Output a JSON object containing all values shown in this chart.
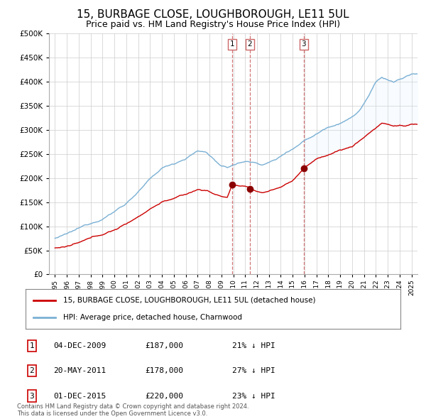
{
  "title": "15, BURBAGE CLOSE, LOUGHBOROUGH, LE11 5UL",
  "subtitle": "Price paid vs. HM Land Registry's House Price Index (HPI)",
  "title_fontsize": 11,
  "subtitle_fontsize": 9,
  "ytick_values": [
    0,
    50000,
    100000,
    150000,
    200000,
    250000,
    300000,
    350000,
    400000,
    450000,
    500000
  ],
  "ylim": [
    0,
    500000
  ],
  "xlim_start": 1994.5,
  "xlim_end": 2025.5,
  "legend_entries": [
    "15, BURBAGE CLOSE, LOUGHBOROUGH, LE11 5UL (detached house)",
    "HPI: Average price, detached house, Charnwood"
  ],
  "legend_colors": [
    "#cc0000",
    "#7ab0d4"
  ],
  "sale_events": [
    {
      "label": "1",
      "date": "04-DEC-2009",
      "price": "£187,000",
      "hpi_pct": "21% ↓ HPI",
      "year": 2009.92,
      "price_val": 187000
    },
    {
      "label": "2",
      "date": "20-MAY-2011",
      "price": "£178,000",
      "hpi_pct": "27% ↓ HPI",
      "year": 2011.38,
      "price_val": 178000
    },
    {
      "label": "3",
      "date": "01-DEC-2015",
      "price": "£220,000",
      "hpi_pct": "23% ↓ HPI",
      "year": 2015.92,
      "price_val": 220000
    }
  ],
  "sale_marker_color": "#8b0000",
  "vline_color": "#cc6666",
  "footnote": "Contains HM Land Registry data © Crown copyright and database right 2024.\nThis data is licensed under the Open Government Licence v3.0.",
  "background_color": "#ffffff",
  "grid_color": "#cccccc",
  "shade_color": "#ddeeff"
}
